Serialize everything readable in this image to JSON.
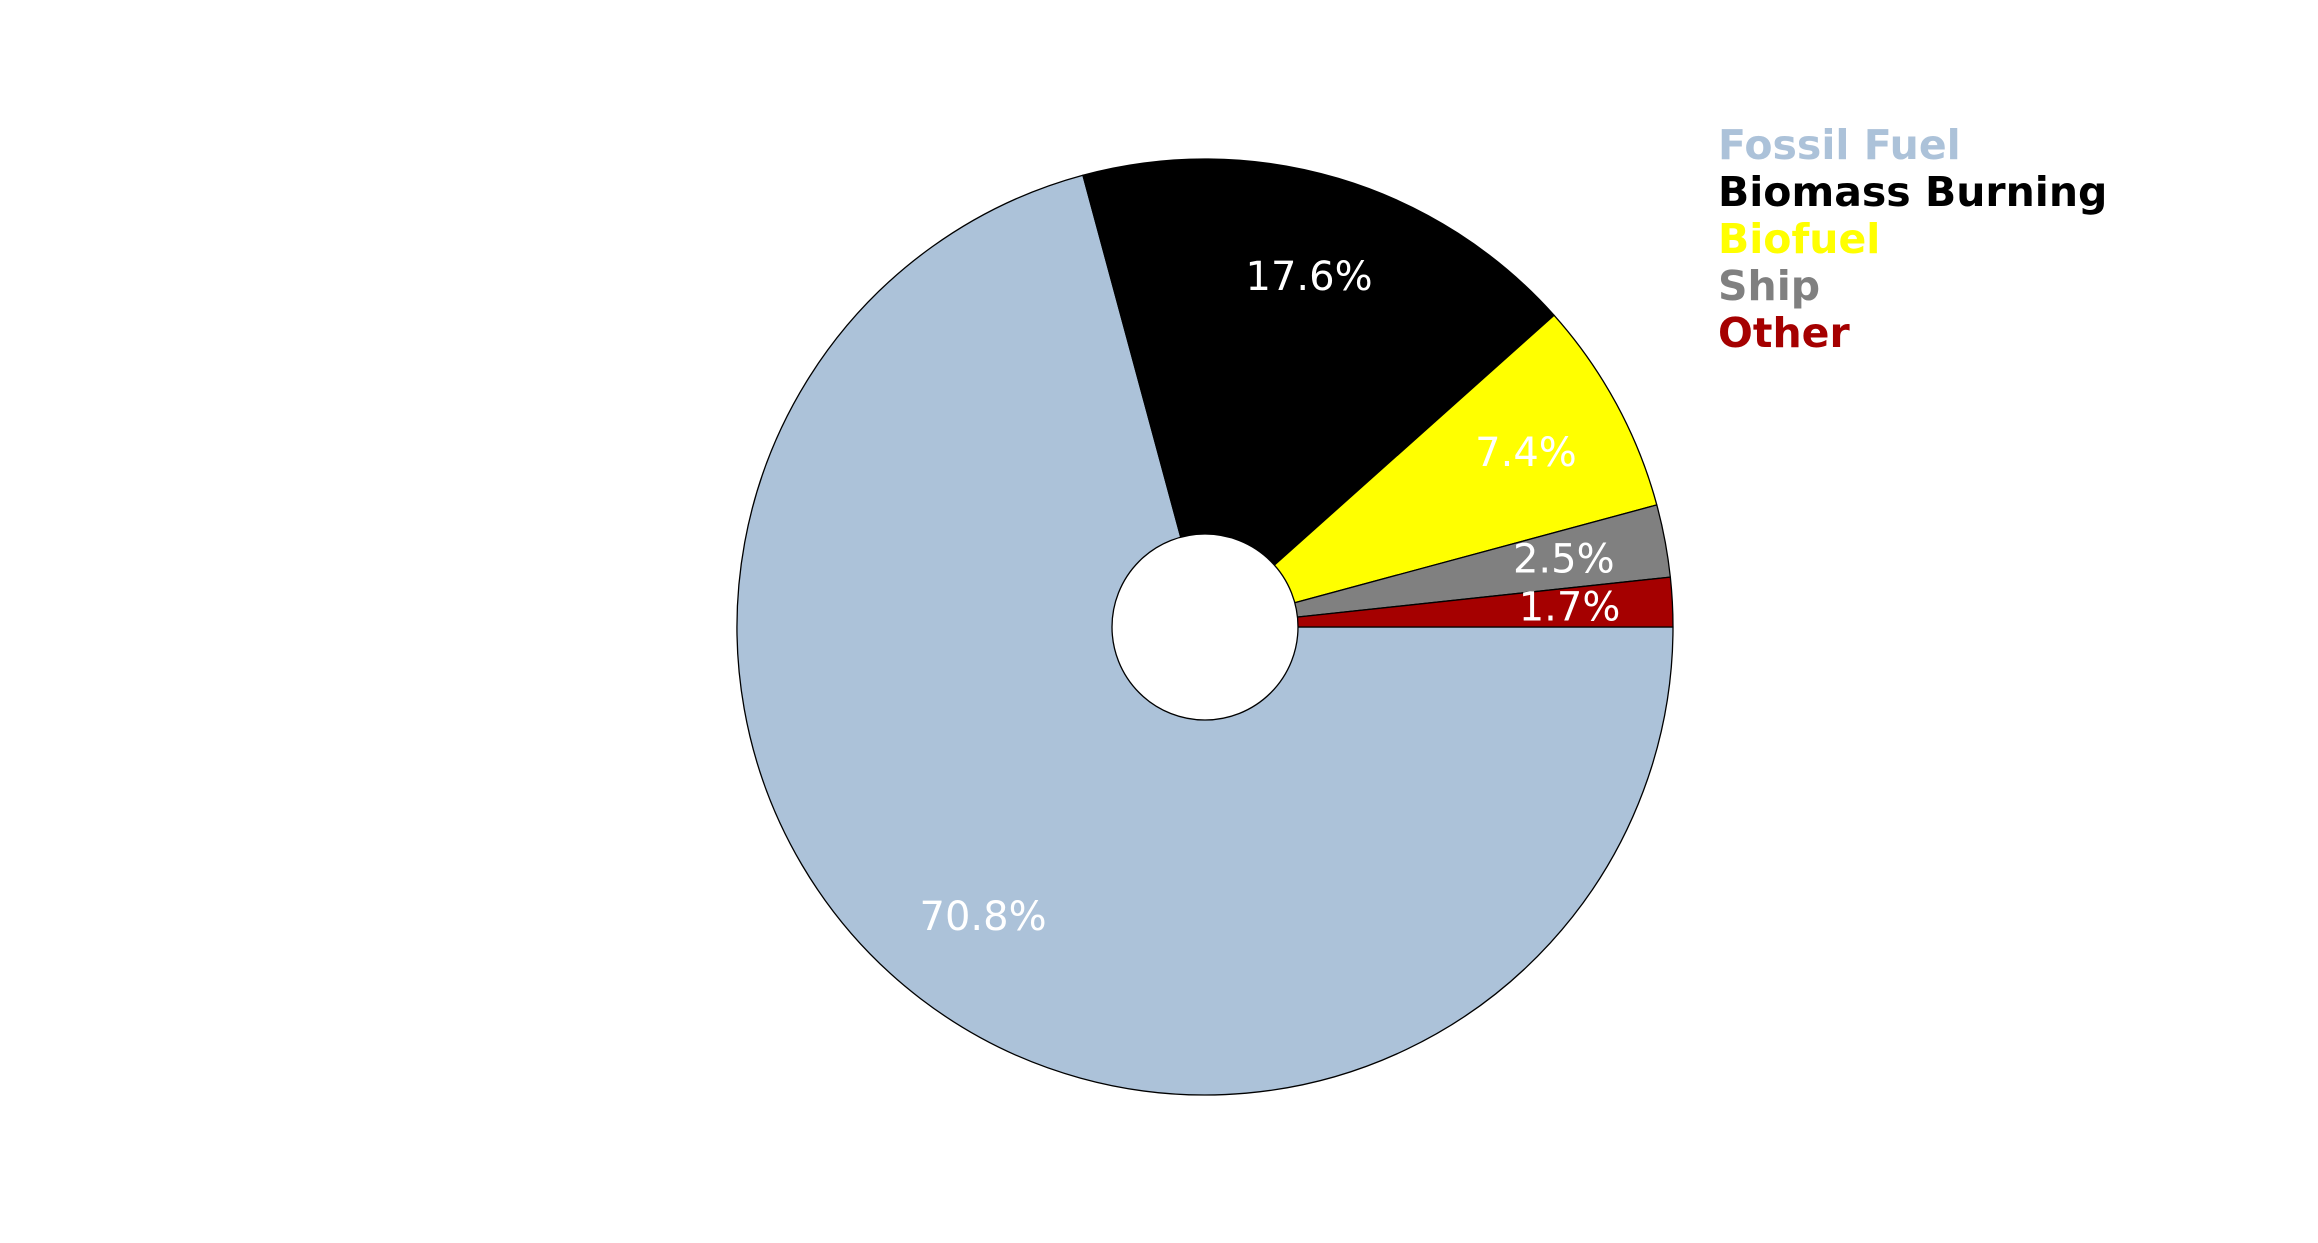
{
  "chart_data": {
    "type": "pie",
    "title": "",
    "categories": [
      "Fossil Fuel",
      "Biomass Burning",
      "Biofuel",
      "Ship",
      "Other"
    ],
    "values": [
      70.8,
      17.6,
      7.4,
      2.5,
      1.7
    ],
    "labels": [
      "70.8%",
      "17.6%",
      "7.4%",
      "2.5%",
      "1.7%"
    ],
    "colors": [
      "#acc2d9",
      "#000000",
      "#ffff00",
      "#808080",
      "#a50000"
    ],
    "start_angle_deg": 0,
    "direction": "clockwise",
    "donut": true,
    "legend": {
      "placement": "top-right",
      "entries": [
        "Fossil Fuel",
        "Biomass Burning",
        "Biofuel",
        "Ship",
        "Other"
      ]
    }
  }
}
